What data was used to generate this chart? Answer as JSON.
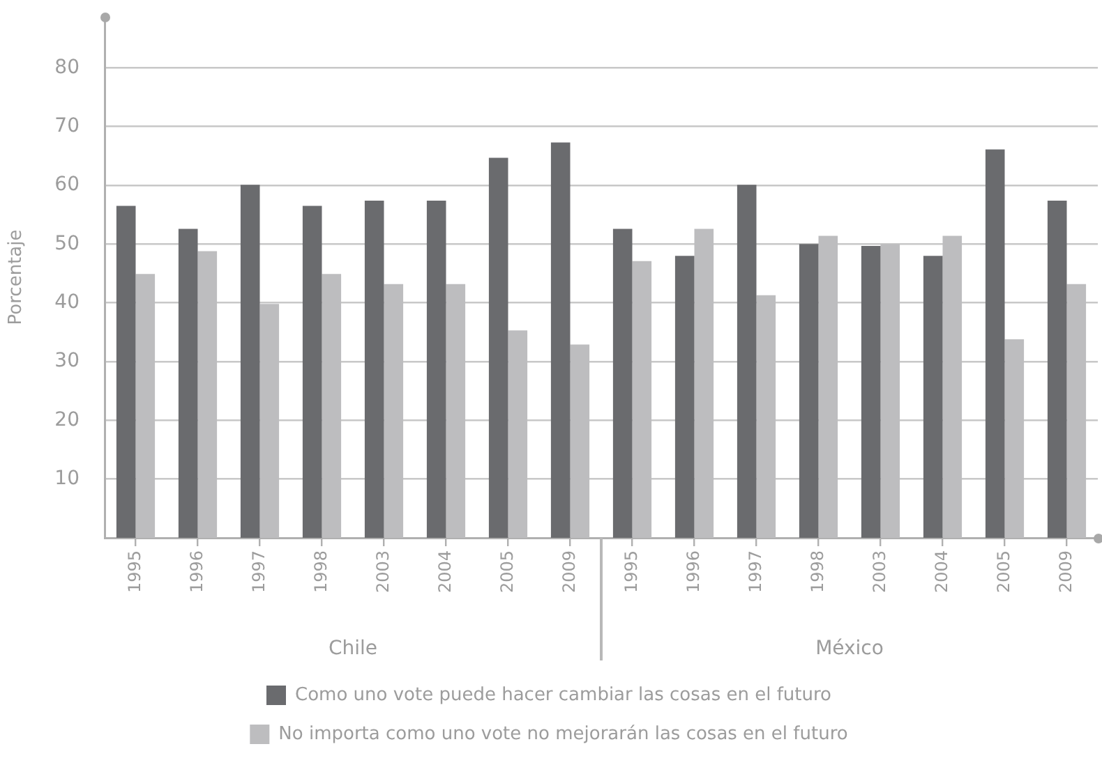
{
  "chart_data": {
    "type": "bar",
    "categories": [
      "1995",
      "1996",
      "1997",
      "1998",
      "2003",
      "2004",
      "2005",
      "2009",
      "1995",
      "1996",
      "1997",
      "1998",
      "2003",
      "2004",
      "2005",
      "2009"
    ],
    "series": [
      {
        "name": "Como uno vote puede hacer cambiar las cosas en el futuro",
        "color": "#6a6b6e",
        "values": [
          56.5,
          52.6,
          60.1,
          56.5,
          57.4,
          57.4,
          64.7,
          67.3,
          52.6,
          48.0,
          60.1,
          50.0,
          49.7,
          48.0,
          66.1,
          57.4
        ]
      },
      {
        "name": "No importa como uno vote no mejorarán las cosas en el futuro",
        "color": "#bdbdbf",
        "values": [
          44.9,
          48.8,
          39.8,
          44.9,
          43.2,
          43.2,
          35.3,
          32.9,
          47.1,
          52.6,
          41.3,
          51.4,
          50.0,
          51.4,
          33.8,
          43.2
        ]
      }
    ],
    "ylabel": "Porcentaje",
    "ylim": [
      0,
      88.7
    ],
    "yticks": [
      10,
      20,
      30,
      40,
      50,
      60,
      70,
      80
    ],
    "annotations": [
      "Chile",
      "México"
    ],
    "grid": "y",
    "legend": "bottom"
  }
}
